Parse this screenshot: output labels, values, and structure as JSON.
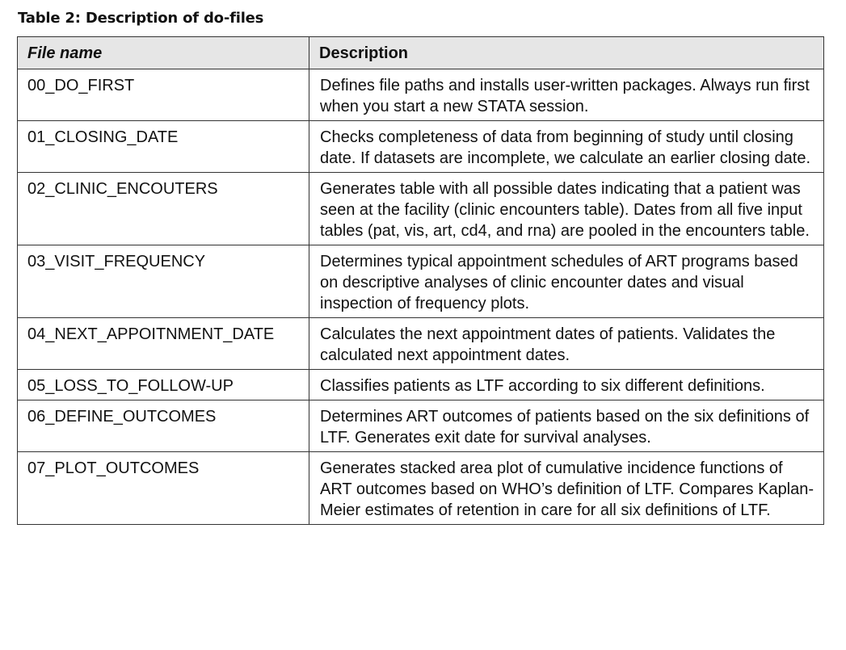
{
  "caption": "Table 2: Description of do-files",
  "table": {
    "headers": [
      "File name",
      "Description"
    ],
    "rows": [
      {
        "file": "00_DO_FIRST",
        "description": "Defines file paths and installs user-written packages. Always run first when you start a new STATA session."
      },
      {
        "file": "01_CLOSING_DATE",
        "description": "Checks completeness of data from beginning of study until closing date. If datasets are incomplete, we calculate an earlier closing date."
      },
      {
        "file": "02_CLINIC_ENCOUTERS",
        "description": "Generates table with all possible dates indicating that a patient was seen at the facility (clinic encounters table). Dates from all five input tables (pat, vis, art, cd4, and rna) are pooled in the encounters table."
      },
      {
        "file": "03_VISIT_FREQUENCY",
        "description": "Determines typical appointment schedules of ART programs based on descriptive analyses of clinic encounter dates and visual inspection of frequency plots."
      },
      {
        "file": "04_NEXT_APPOITNMENT_DATE",
        "description": "Calculates the next appointment dates of patients. Validates the calculated next appointment dates."
      },
      {
        "file": "05_LOSS_TO_FOLLOW-UP",
        "description": "Classifies patients as LTF according to six different definitions."
      },
      {
        "file": "06_DEFINE_OUTCOMES",
        "description": "Determines ART outcomes of patients based on the six definitions of LTF. Generates exit date for survival analyses."
      },
      {
        "file": "07_PLOT_OUTCOMES",
        "description": "Generates stacked area plot of cumulative incidence functions of ART outcomes based on WHO’s definition of LTF. Compares Kaplan-Meier estimates of retention in care for all six definitions of LTF."
      }
    ]
  }
}
